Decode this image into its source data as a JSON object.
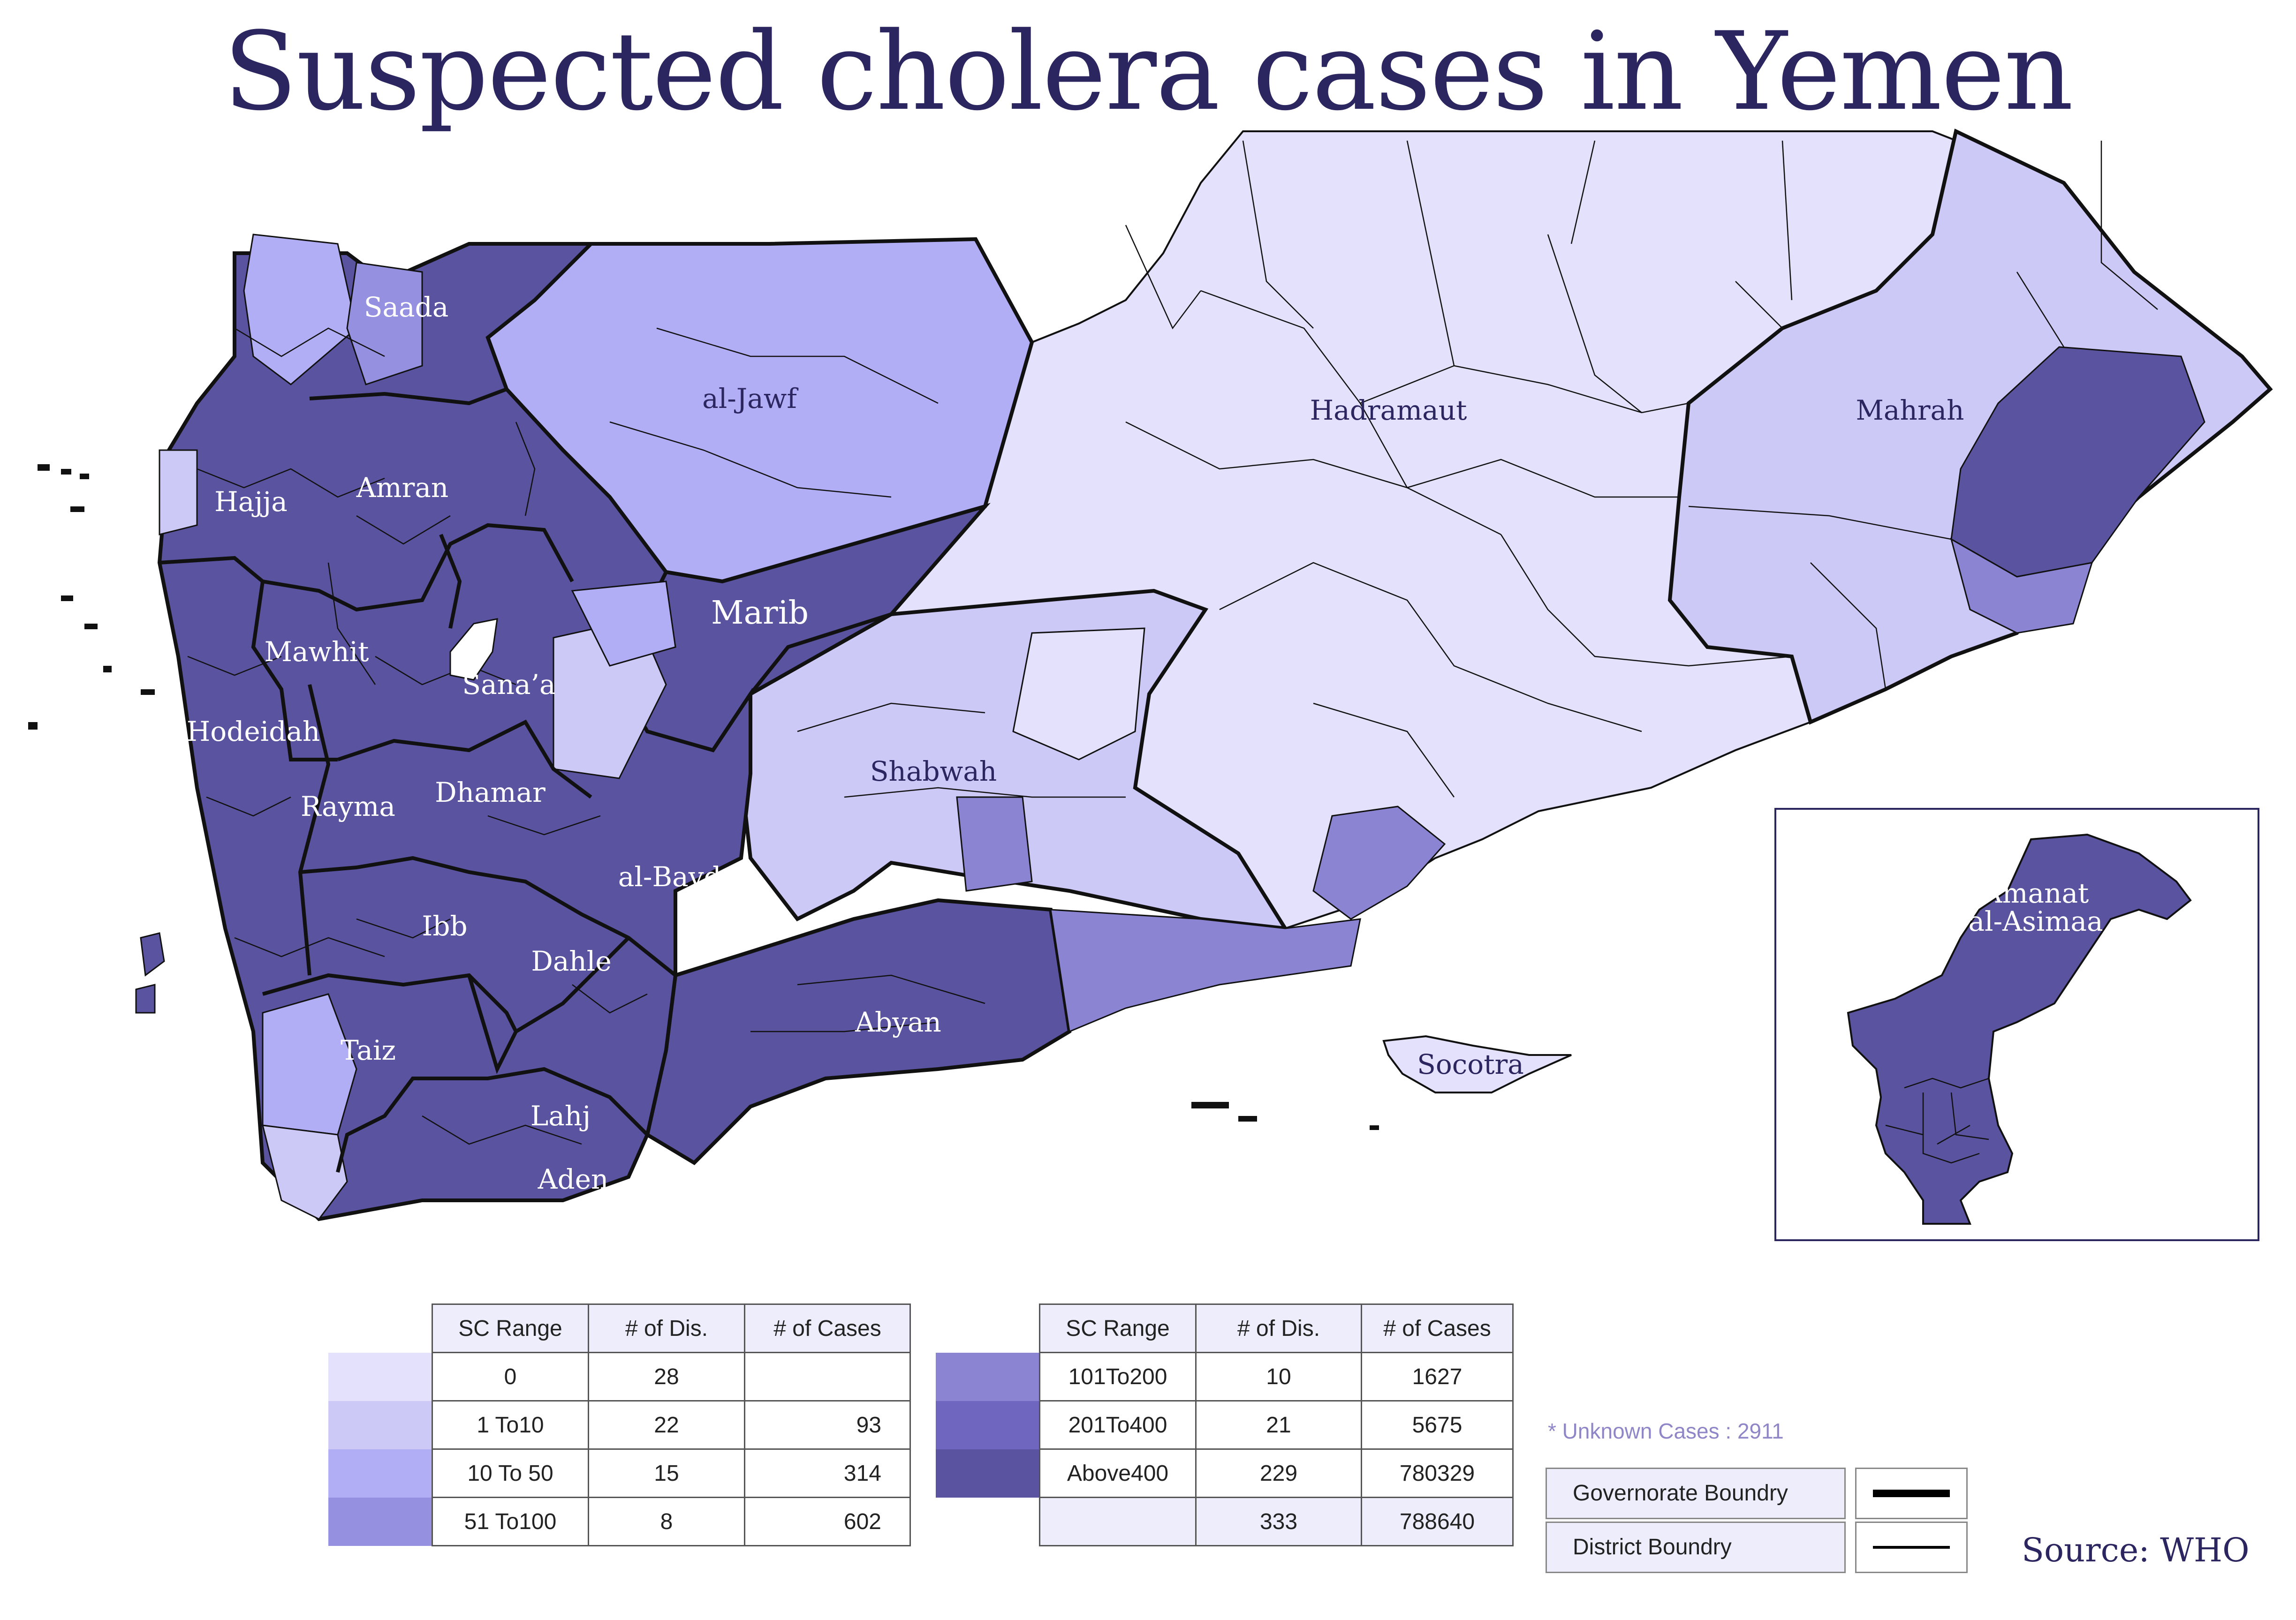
{
  "title": "Suspected cholera cases in Yemen",
  "colors": {
    "c0": "#e3e1fb",
    "c1": "#cdc9f7",
    "c2": "#b2aef6",
    "c3": "#9590df",
    "c4": "#8a84d2",
    "c5": "#6f67bf",
    "c6": "#5a53a0",
    "water": "#ffffff",
    "outline": "#111111"
  },
  "regions": [
    {
      "name": "Saada",
      "level": "Above400"
    },
    {
      "name": "al-Jawf",
      "level": "10 To 50"
    },
    {
      "name": "Hadramaut",
      "level": "0"
    },
    {
      "name": "Mahrah",
      "level": "1 To10"
    },
    {
      "name": "Hajja",
      "level": "Above400"
    },
    {
      "name": "Amran",
      "level": "Above400"
    },
    {
      "name": "Marib",
      "level": "Above400"
    },
    {
      "name": "Mawhit",
      "level": "Above400"
    },
    {
      "name": "Sana'a",
      "level": "Above400"
    },
    {
      "name": "Hodeidah",
      "level": "Above400"
    },
    {
      "name": "Shabwah",
      "level": "1 To10"
    },
    {
      "name": "Rayma",
      "level": "Above400"
    },
    {
      "name": "Dhamar",
      "level": "Above400"
    },
    {
      "name": "al-Bayda",
      "level": "Above400"
    },
    {
      "name": "Ibb",
      "level": "Above400"
    },
    {
      "name": "Dahle",
      "level": "Above400"
    },
    {
      "name": "Abyan",
      "level": "Above400"
    },
    {
      "name": "Taiz",
      "level": "Above400"
    },
    {
      "name": "Lahj",
      "level": "Above400"
    },
    {
      "name": "Aden",
      "level": "Above400"
    },
    {
      "name": "Socotra",
      "level": "0"
    }
  ],
  "labels": {
    "saada": "Saada",
    "jawf": "al-Jawf",
    "hadramaut": "Hadramaut",
    "mahrah": "Mahrah",
    "hajja": "Hajja",
    "amran": "Amran",
    "marib": "Marib",
    "mawhit": "Mawhit",
    "sanaa": "Sana’a",
    "hodeidah": "Hodeidah",
    "shabwah": "Shabwah",
    "rayma": "Rayma",
    "dhamar": "Dhamar",
    "bayda": "al-Bayda",
    "ibb": "Ibb",
    "dahle": "Dahle",
    "abyan": "Abyan",
    "taiz": "Taiz",
    "lahj": "Lahj",
    "aden": "Aden",
    "socotra": "Socotra",
    "amanat1": "Amanat",
    "amanat2": "al-Asimaa"
  },
  "legend": {
    "headers": [
      "SC Range",
      "# of Dis.",
      "# of Cases"
    ],
    "left_rows": [
      {
        "range": "0",
        "districts": "28",
        "cases": "",
        "color": "#e3e1fb"
      },
      {
        "range": "1 To10",
        "districts": "22",
        "cases": "93",
        "color": "#cdc9f7"
      },
      {
        "range": "10 To 50",
        "districts": "15",
        "cases": "314",
        "color": "#b2aef6"
      },
      {
        "range": "51 To100",
        "districts": "8",
        "cases": "602",
        "color": "#9590df"
      }
    ],
    "right_rows": [
      {
        "range": "101To200",
        "districts": "10",
        "cases": "1627",
        "color": "#8a84d2"
      },
      {
        "range": "201To400",
        "districts": "21",
        "cases": "5675",
        "color": "#6f67bf"
      },
      {
        "range": "Above400",
        "districts": "229",
        "cases": "780329",
        "color": "#5a53a0"
      }
    ],
    "total": {
      "range": "",
      "districts": "333",
      "cases": "788640"
    }
  },
  "unknown_cases": "* Unknown Cases : 2911",
  "boundary_key": {
    "governorate": "Governorate Boundry",
    "district": "District Boundry"
  },
  "source": "Source: WHO"
}
